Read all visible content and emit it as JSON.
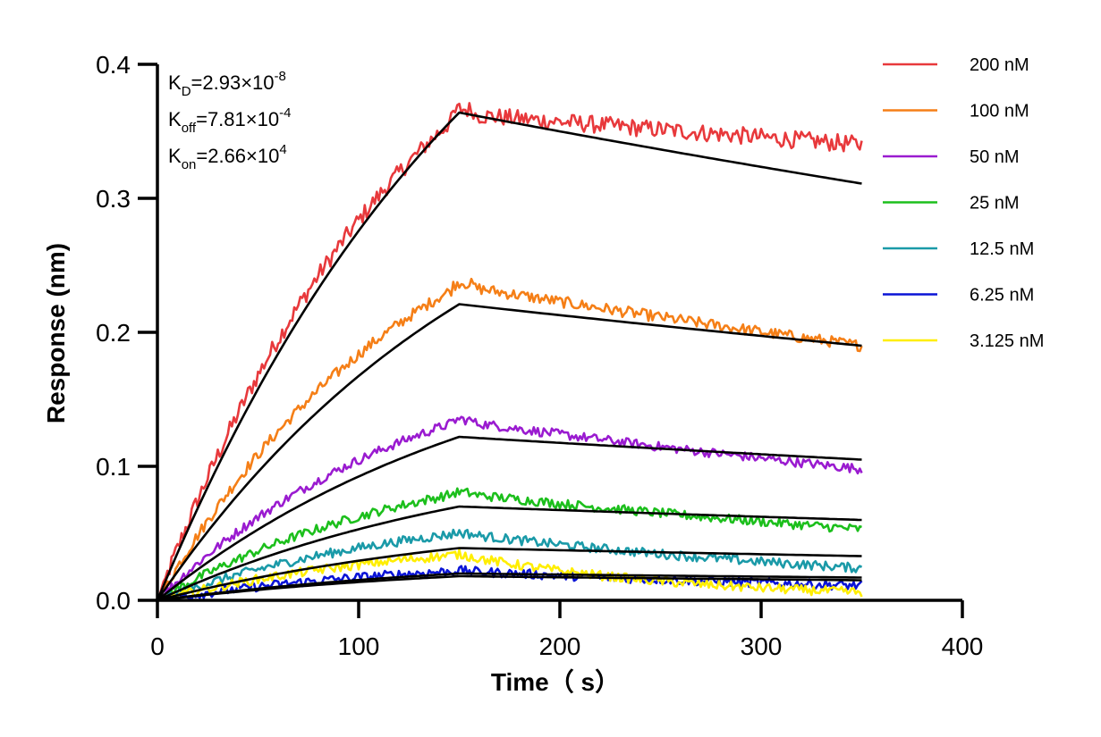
{
  "chart_data": {
    "type": "line",
    "xlabel": "Time（ s）",
    "ylabel": "Response (nm)",
    "xlim": [
      0,
      400
    ],
    "ylim": [
      0,
      0.4
    ],
    "x_ticks": [
      "0",
      "100",
      "200",
      "300",
      "400"
    ],
    "y_ticks": [
      "0.0",
      "0.1",
      "0.2",
      "0.3",
      "0.4"
    ],
    "grid": false,
    "legend_position": "right",
    "annotations": [
      {
        "symbol": "K",
        "sub": "D",
        "value": "=2.93×10",
        "exp": "-8"
      },
      {
        "symbol": "K",
        "sub": "off",
        "value": "=7.81×10",
        "exp": "-4"
      },
      {
        "symbol": "K",
        "sub": "on",
        "value": "=2.66×10",
        "exp": "4"
      }
    ],
    "association_end": 150,
    "time_end": 350,
    "series": [
      {
        "name": "200 nM",
        "color": "#e8393c",
        "peak": 0.363,
        "end": 0.34,
        "fit_peak": 0.364,
        "fit_end": 0.311
      },
      {
        "name": "100 nM",
        "color": "#f57f17",
        "peak": 0.235,
        "end": 0.19,
        "fit_peak": 0.221,
        "fit_end": 0.19
      },
      {
        "name": "50 nM",
        "color": "#9a1bd0",
        "peak": 0.134,
        "end": 0.098,
        "fit_peak": 0.122,
        "fit_end": 0.105
      },
      {
        "name": "25 nM",
        "color": "#1cbf1c",
        "peak": 0.08,
        "end": 0.053,
        "fit_peak": 0.07,
        "fit_end": 0.06
      },
      {
        "name": "12.5 nM",
        "color": "#1a9aa8",
        "peak": 0.05,
        "end": 0.024,
        "fit_peak": 0.039,
        "fit_end": 0.033
      },
      {
        "name": "6.25 nM",
        "color": "#0a14d6",
        "peak": 0.022,
        "end": 0.011,
        "fit_peak": 0.02,
        "fit_end": 0.017
      },
      {
        "name": "3.125 nM",
        "color": "#ffee00",
        "peak": 0.034,
        "end": 0.006,
        "fit_peak": 0.018,
        "fit_end": 0.015
      }
    ]
  }
}
